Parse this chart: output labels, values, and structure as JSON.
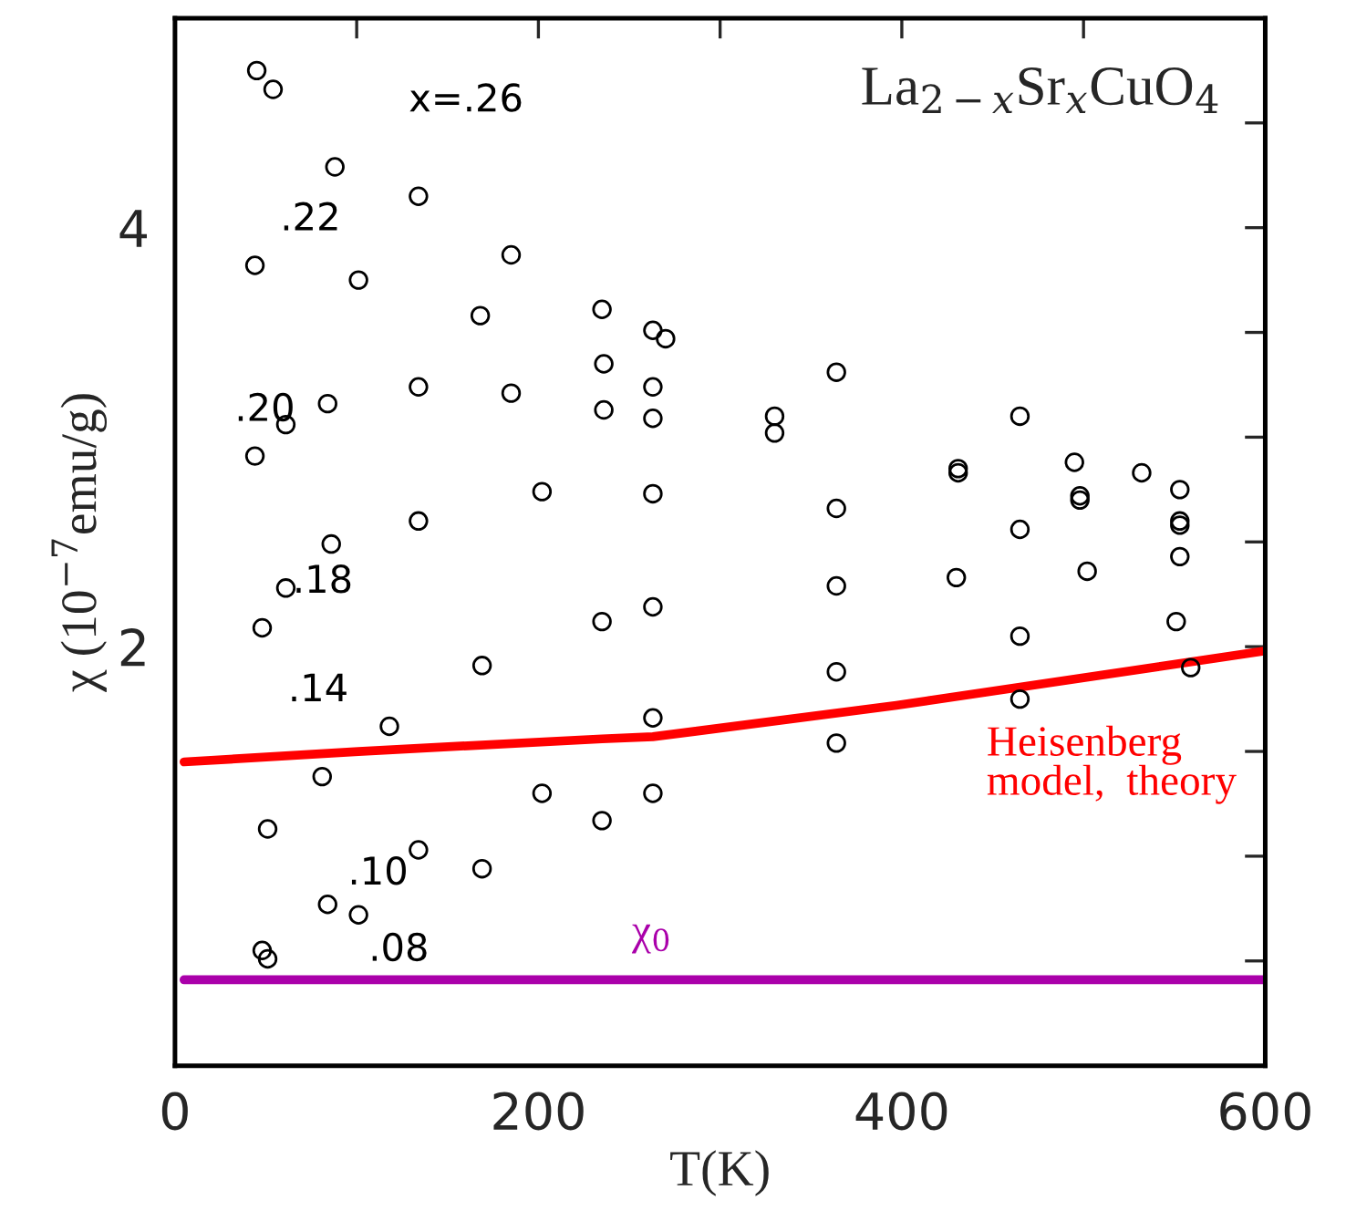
{
  "chart_data": {
    "type": "scatter",
    "title": "La$_{2−x}$Sr$_{x}$CuO$_{4}$",
    "xlabel": "T(K)",
    "ylabel": "χ (10$^{−7}$emu/g)",
    "xlim": [
      0,
      600
    ],
    "ylim": [
      0,
      5
    ],
    "xticks": [
      0,
      {
        "value": 100,
        "label": null
      },
      200,
      {
        "value": 300,
        "label": null
      },
      400,
      {
        "value": 500,
        "label": null
      },
      600
    ],
    "yticks": [
      {
        "value": 0.5,
        "label": null
      },
      {
        "value": 1,
        "label": null
      },
      {
        "value": 1.5,
        "label": null
      },
      2,
      {
        "value": 2.5,
        "label": null
      },
      {
        "value": 3,
        "label": null
      },
      {
        "value": 3.5,
        "label": null
      },
      4,
      {
        "value": 4.5,
        "label": null
      }
    ],
    "grid": false,
    "legend": false,
    "marker": "circle",
    "series": [
      {
        "name": "x=.26",
        "color": "#000000",
        "x": [
          45,
          54,
          88,
          134,
          185,
          235,
          263,
          270,
          364,
          465,
          495,
          532,
          553
        ],
        "values": [
          4.75,
          4.66,
          4.29,
          4.15,
          3.87,
          3.61,
          3.51,
          3.47,
          3.31,
          3.1,
          2.88,
          2.83,
          2.75
        ]
      },
      {
        "name": ".22",
        "color": "#000000",
        "x": [
          44,
          101,
          168,
          236,
          263,
          330,
          431,
          498,
          553
        ],
        "values": [
          3.82,
          3.75,
          3.58,
          3.35,
          3.24,
          3.1,
          2.85,
          2.72,
          2.6
        ]
      },
      {
        "name": ".20",
        "color": "#000000",
        "x": [
          44,
          61,
          84,
          134,
          185,
          236,
          263,
          330,
          431,
          498,
          553
        ],
        "values": [
          2.91,
          3.06,
          3.16,
          3.24,
          3.21,
          3.13,
          3.09,
          3.02,
          2.83,
          2.7,
          2.58
        ]
      },
      {
        "name": ".18",
        "color": "#000000",
        "x": [
          48,
          61,
          86,
          134,
          202,
          263,
          364,
          465,
          553
        ],
        "values": [
          2.09,
          2.28,
          2.49,
          2.6,
          2.74,
          2.73,
          2.66,
          2.56,
          2.43
        ]
      },
      {
        "name": ".14",
        "color": "#000000",
        "x": [
          51,
          81,
          118,
          169,
          235,
          263,
          364,
          430,
          502
        ],
        "values": [
          1.13,
          1.38,
          1.62,
          1.91,
          2.12,
          2.19,
          2.29,
          2.33,
          2.36
        ]
      },
      {
        "name": ".10",
        "color": "#000000",
        "x": [
          48,
          84,
          134,
          202,
          263,
          364,
          465,
          551
        ],
        "values": [
          0.55,
          0.77,
          1.03,
          1.3,
          1.66,
          1.88,
          2.05,
          2.12
        ]
      },
      {
        "name": ".08",
        "color": "#000000",
        "x": [
          51,
          101,
          169,
          235,
          263,
          364,
          465,
          559
        ],
        "values": [
          0.51,
          0.72,
          0.94,
          1.17,
          1.3,
          1.54,
          1.75,
          1.9
        ]
      },
      {
        "name": "Heisenberg\nmodel,  theory",
        "type": "line",
        "marker": "none",
        "line_style": "solid",
        "color": "#ff0000",
        "x": [
          5,
          101,
          235,
          263,
          397,
          600
        ],
        "values": [
          1.45,
          1.5,
          1.56,
          1.57,
          1.72,
          1.98
        ]
      },
      {
        "name": "χ$_{0}$",
        "type": "line",
        "marker": "none",
        "line_style": "solid",
        "color": "#aa00aa",
        "x": [
          5,
          600
        ],
        "values": [
          0.41,
          0.41
        ]
      }
    ]
  }
}
